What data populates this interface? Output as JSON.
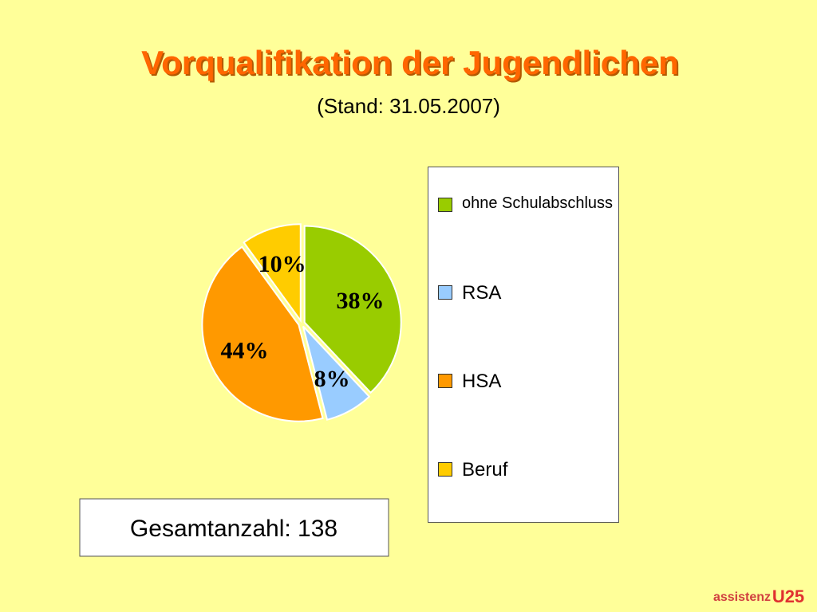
{
  "chart_data": {
    "type": "pie",
    "title": "Vorqualifikation der Jugendlichen",
    "subtitle": "(Stand: 31.05.2007)",
    "categories": [
      "ohne Schulabschluss",
      "RSA",
      "HSA",
      "Beruf"
    ],
    "values": [
      38,
      8,
      44,
      10
    ],
    "value_labels": [
      "38%",
      "8%",
      "44%",
      "10%"
    ],
    "colors": [
      "#99cc00",
      "#99ccff",
      "#ff9900",
      "#ffcc00"
    ],
    "annotation": "Gesamtanzahl: 138",
    "logo": [
      "assistenz",
      "U25"
    ]
  }
}
